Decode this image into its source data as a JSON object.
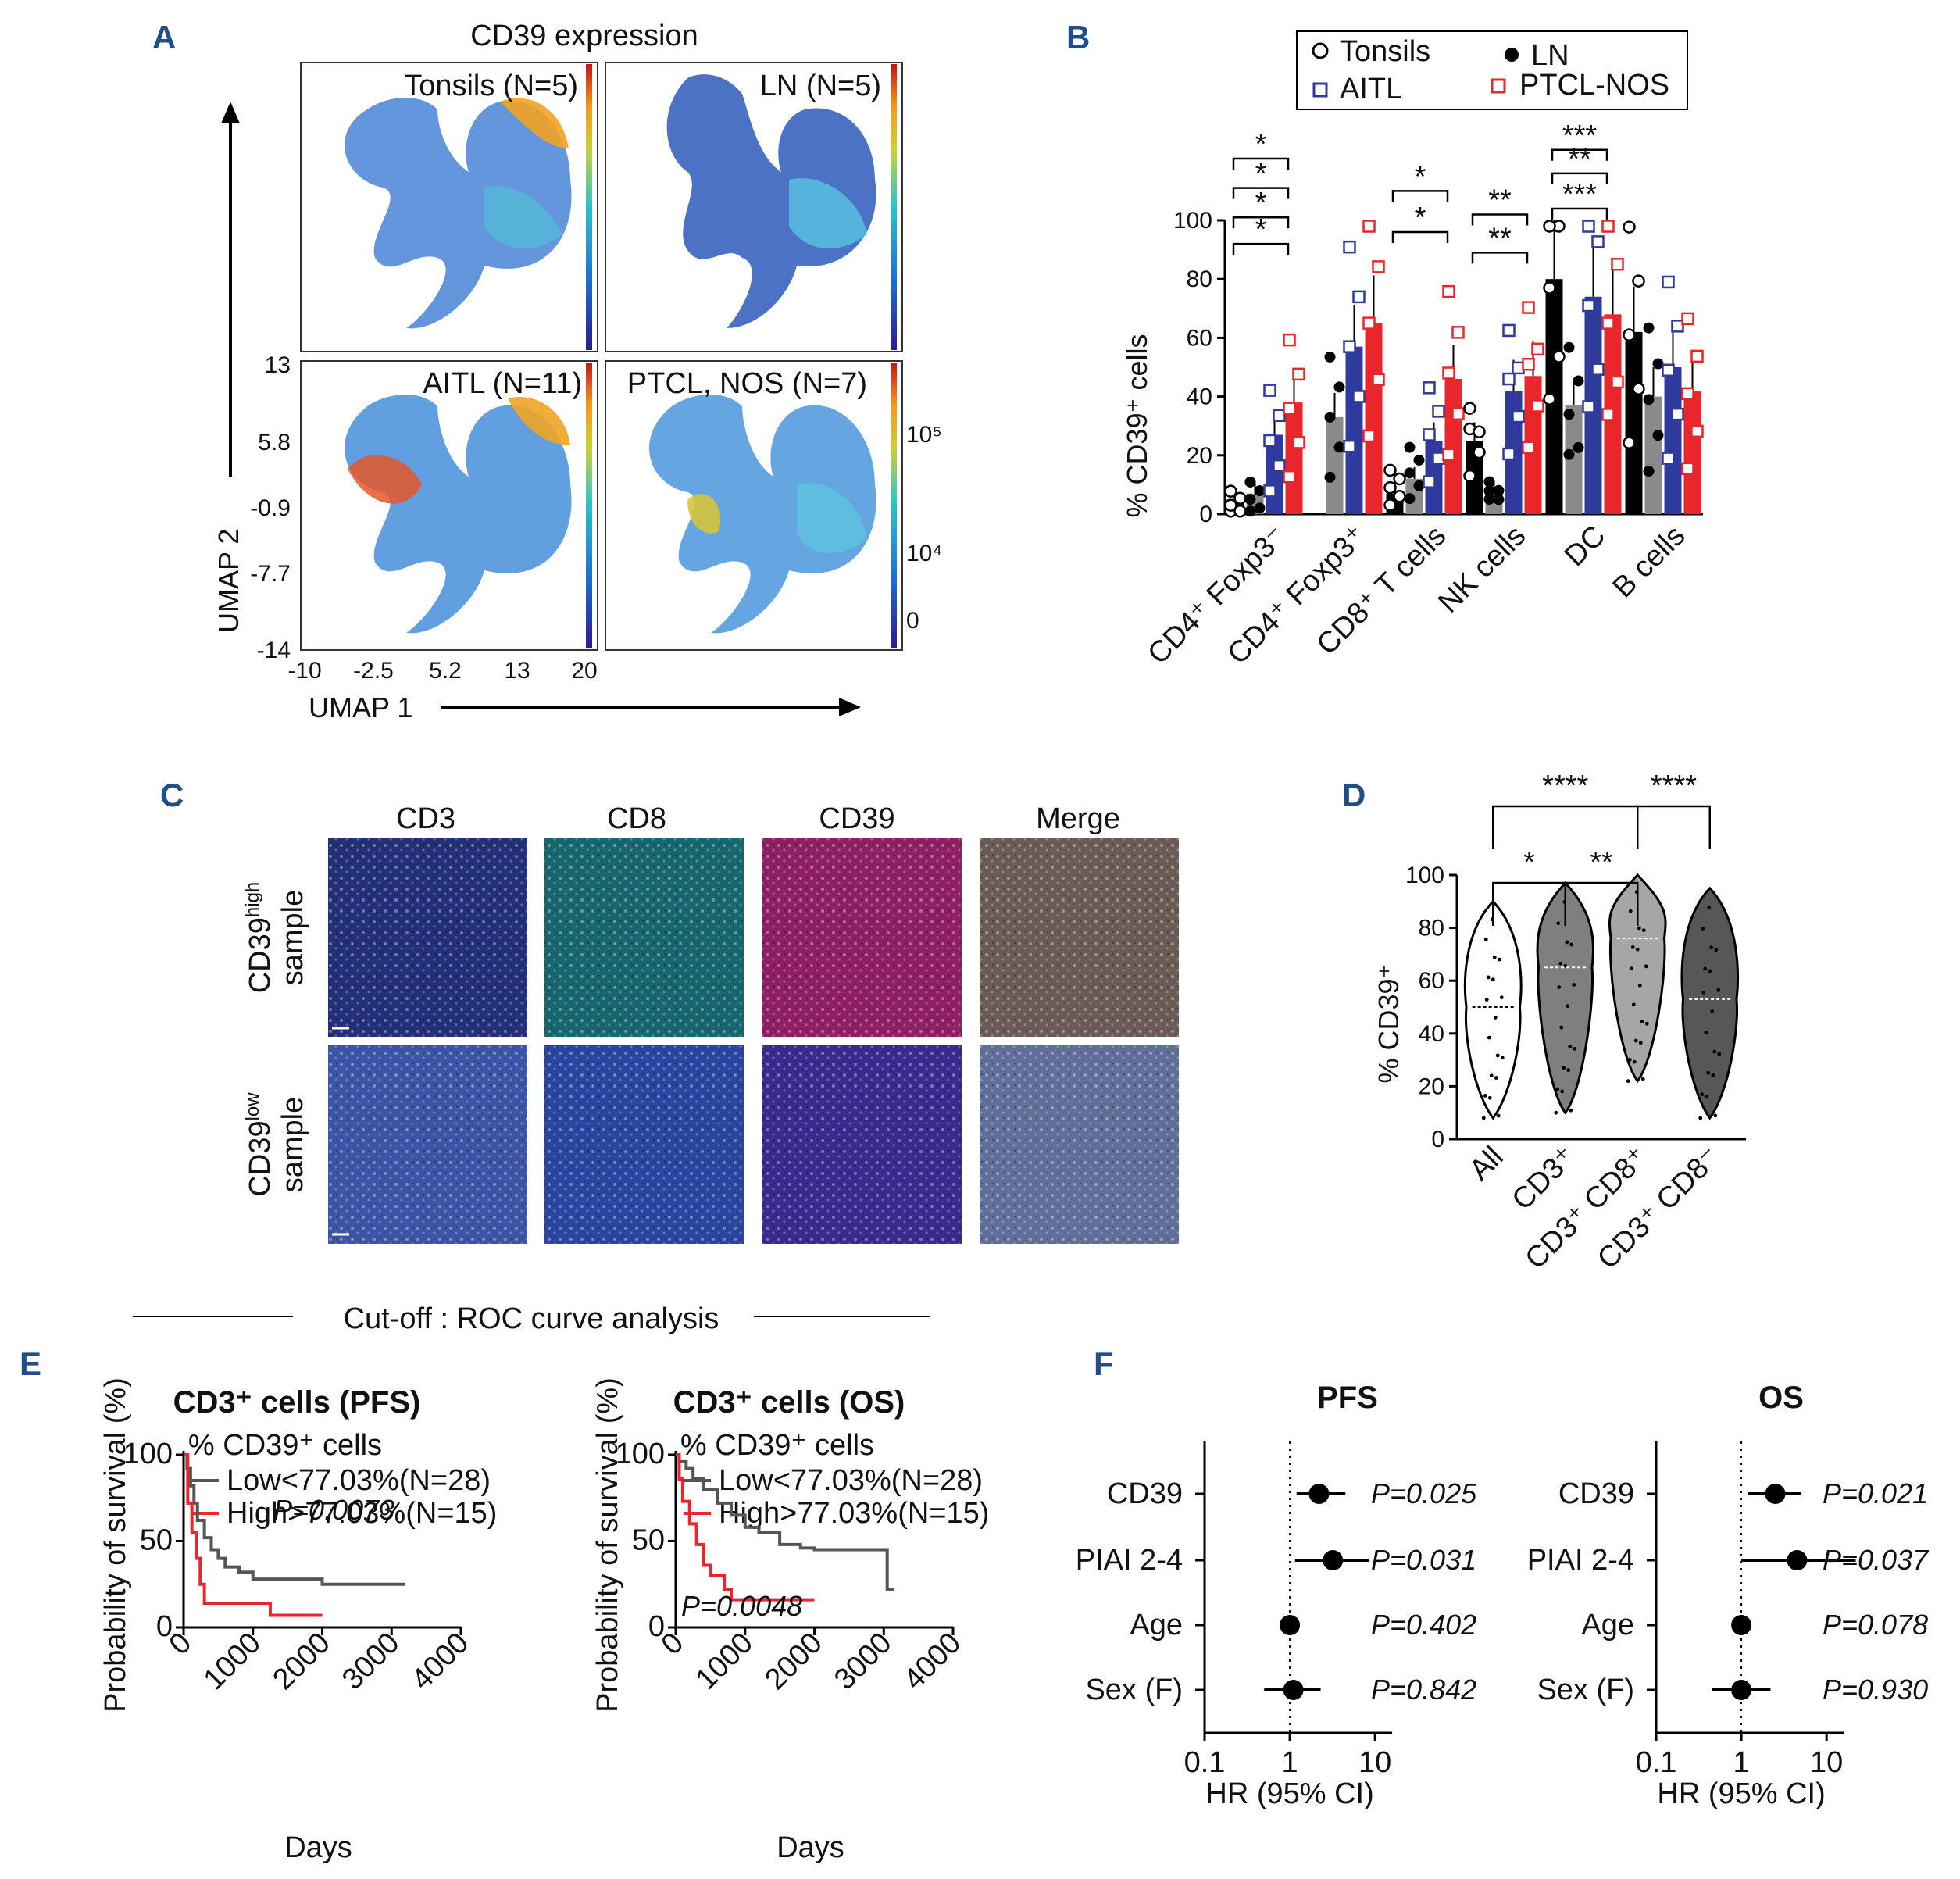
{
  "panels": {
    "a": "A",
    "b": "B",
    "c": "C",
    "d": "D",
    "e": "E",
    "f": "F"
  },
  "colors": {
    "tonsils": "#000000",
    "ln": "#000000",
    "aitl": "#2e3a9c",
    "ptcl": "#e8262b",
    "grey": "#8a8a8a",
    "dapi": "#2433a8",
    "cd39": "#b21a7a",
    "cd8": "#1c9e8c",
    "merge": "#6a6a6a"
  },
  "panel_a": {
    "title": "CD39 expression",
    "subplots": [
      "Tonsils (N=5)",
      "LN (N=5)",
      "AITL (N=11)",
      "PTCL, NOS (N=7)"
    ],
    "y_axis_label": "UMAP 2",
    "x_axis_label": "UMAP 1",
    "y_ticks": [
      "13",
      "5.8",
      "-0.9",
      "-7.7",
      "-14"
    ],
    "x_ticks": [
      "-10",
      "-2.5",
      "5.2",
      "13",
      "20"
    ],
    "colorbar_labels": [
      "10⁵",
      "10⁴",
      "0"
    ]
  },
  "panel_b": {
    "y_axis_label": "% CD39⁺ cells",
    "legend": [
      {
        "key": "tonsils",
        "label": "Tonsils"
      },
      {
        "key": "ln",
        "label": "LN"
      },
      {
        "key": "aitl",
        "label": "AITL"
      },
      {
        "key": "ptcl",
        "label": "PTCL-NOS"
      }
    ],
    "chart_data": {
      "type": "bar",
      "categories": [
        "CD4⁺ Foxp3⁻",
        "CD4⁺ Foxp3⁺",
        "CD8⁺ T cells",
        "NK cells",
        "DC",
        "B cells"
      ],
      "series": [
        {
          "name": "Tonsils",
          "values": [
            5,
            null,
            7,
            25,
            80,
            62
          ]
        },
        {
          "name": "LN",
          "values": [
            7,
            33,
            12,
            7,
            37,
            40
          ]
        },
        {
          "name": "AITL",
          "values": [
            27,
            57,
            25,
            42,
            74,
            50
          ]
        },
        {
          "name": "PTCL-NOS",
          "values": [
            38,
            65,
            46,
            47,
            68,
            42
          ]
        }
      ],
      "ylim": [
        0,
        100
      ],
      "yticks": [
        0,
        20,
        40,
        60,
        80,
        100
      ],
      "significance": [
        {
          "category": "CD4⁺ Foxp3⁻",
          "marks": [
            "*",
            "*",
            "*",
            "*"
          ]
        },
        {
          "category": "CD8⁺ T cells",
          "marks": [
            "*",
            "*"
          ]
        },
        {
          "category": "NK cells",
          "marks": [
            "**",
            "**"
          ]
        },
        {
          "category": "DC",
          "marks": [
            "***",
            "**",
            "***"
          ]
        }
      ]
    }
  },
  "panel_c": {
    "columns": [
      "CD3",
      "CD8",
      "CD39",
      "Merge"
    ],
    "rows": [
      {
        "line1": "CD39",
        "sup": "high",
        "line2": "sample"
      },
      {
        "line1": "CD39",
        "sup": "low",
        "line2": "sample"
      }
    ]
  },
  "panel_d": {
    "y_axis_label": "% CD39⁺",
    "chart_data": {
      "type": "violin",
      "categories": [
        "All",
        "CD3⁺",
        "CD3⁺ CD8⁺",
        "CD3⁺ CD8⁻"
      ],
      "ranges": [
        [
          8,
          90
        ],
        [
          10,
          97
        ],
        [
          22,
          100
        ],
        [
          8,
          95
        ]
      ],
      "medians": [
        50,
        65,
        76,
        53
      ],
      "ylim": [
        0,
        100
      ],
      "yticks": [
        0,
        20,
        40,
        60,
        80,
        100
      ],
      "significance": [
        "****",
        "****",
        "*",
        "**"
      ]
    }
  },
  "roc_line": "Cut-off : ROC curve analysis",
  "panel_e": {
    "plots": [
      {
        "title": "CD3⁺ cells (PFS)",
        "legend_title": "% CD39⁺ cells",
        "low": "Low<77.03%(N=28)",
        "high": "High>77.03%(N=15)",
        "p": "P=0.0073"
      },
      {
        "title": "CD3⁺ cells (OS)",
        "legend_title": "% CD39⁺ cells",
        "low": "Low<77.03%(N=28)",
        "high": "High>77.03%(N=15)",
        "p": "P=0.0048"
      }
    ],
    "y_axis_label": "Probability of survival (%)",
    "x_axis_label": "Days",
    "chart_data": {
      "type": "line",
      "xlim": [
        0,
        4000
      ],
      "xticks": [
        0,
        1000,
        2000,
        3000,
        4000
      ],
      "yticks": [
        0,
        50,
        100
      ],
      "pfs_low": [
        [
          0,
          100
        ],
        [
          50,
          92
        ],
        [
          100,
          82
        ],
        [
          150,
          72
        ],
        [
          200,
          62
        ],
        [
          300,
          52
        ],
        [
          400,
          45
        ],
        [
          500,
          40
        ],
        [
          600,
          35
        ],
        [
          800,
          32
        ],
        [
          1000,
          28
        ],
        [
          2000,
          25
        ],
        [
          3200,
          25
        ]
      ],
      "pfs_high": [
        [
          0,
          100
        ],
        [
          60,
          72
        ],
        [
          120,
          55
        ],
        [
          180,
          40
        ],
        [
          240,
          25
        ],
        [
          300,
          14
        ],
        [
          1200,
          14
        ],
        [
          1250,
          7
        ],
        [
          2000,
          7
        ]
      ],
      "os_low": [
        [
          0,
          100
        ],
        [
          50,
          96
        ],
        [
          150,
          92
        ],
        [
          250,
          86
        ],
        [
          400,
          80
        ],
        [
          600,
          72
        ],
        [
          800,
          65
        ],
        [
          1000,
          58
        ],
        [
          1200,
          55
        ],
        [
          1500,
          48
        ],
        [
          1800,
          46
        ],
        [
          2000,
          45
        ],
        [
          3000,
          45
        ],
        [
          3050,
          22
        ],
        [
          3150,
          22
        ]
      ],
      "os_high": [
        [
          0,
          100
        ],
        [
          50,
          86
        ],
        [
          100,
          73
        ],
        [
          200,
          60
        ],
        [
          300,
          48
        ],
        [
          400,
          36
        ],
        [
          500,
          30
        ],
        [
          700,
          22
        ],
        [
          800,
          16
        ],
        [
          2000,
          16
        ]
      ]
    }
  },
  "panel_f": {
    "plots": [
      {
        "title": "PFS",
        "rows": [
          {
            "label": "CD39",
            "hr": 2.2,
            "lo": 1.2,
            "hi": 4.5,
            "p": "P=0.025"
          },
          {
            "label": "PIAI 2-4",
            "hr": 3.2,
            "lo": 1.15,
            "hi": 8.5,
            "p": "P=0.031"
          },
          {
            "label": "Age",
            "hr": 1.0,
            "lo": 0.96,
            "hi": 1.04,
            "p": "P=0.402"
          },
          {
            "label": "Sex (F)",
            "hr": 1.1,
            "lo": 0.5,
            "hi": 2.3,
            "p": "P=0.842"
          }
        ]
      },
      {
        "title": "OS",
        "rows": [
          {
            "label": "CD39",
            "hr": 2.5,
            "lo": 1.2,
            "hi": 5.0,
            "p": "P=0.021"
          },
          {
            "label": "PIAI 2-4",
            "hr": 4.5,
            "lo": 1.0,
            "hi": 22,
            "p": "P=0.037"
          },
          {
            "label": "Age",
            "hr": 1.0,
            "lo": 0.96,
            "hi": 1.04,
            "p": "P=0.078"
          },
          {
            "label": "Sex (F)",
            "hr": 1.0,
            "lo": 0.45,
            "hi": 2.2,
            "p": "P=0.930"
          }
        ]
      }
    ],
    "x_axis_label": "HR (95% CI)",
    "xticks": [
      "0.1",
      "1",
      "10"
    ]
  }
}
